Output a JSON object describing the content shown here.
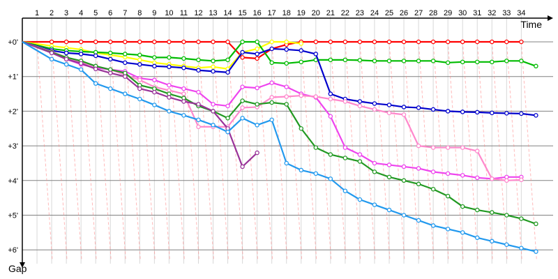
{
  "chart_data": {
    "type": "line",
    "title": "",
    "xlabel": "Time",
    "ylabel": "Gap",
    "x_ticks": [
      1,
      2,
      3,
      4,
      5,
      6,
      7,
      8,
      9,
      10,
      11,
      12,
      13,
      14,
      15,
      16,
      17,
      18,
      19,
      20,
      21,
      22,
      23,
      24,
      25,
      26,
      27,
      28,
      29,
      30,
      31,
      32,
      33,
      34
    ],
    "x_tick_labels": [
      "1",
      "2",
      "3",
      "4",
      "5",
      "6",
      "7",
      "8",
      "9",
      "10",
      "11",
      "12",
      "13",
      "14",
      "15",
      "16",
      "17",
      "18",
      "19",
      "20",
      "21",
      "22",
      "23",
      "24",
      "25",
      "26",
      "27",
      "28",
      "29",
      "30",
      "31",
      "32",
      "33",
      "34"
    ],
    "y_ticks": [
      0,
      1,
      2,
      3,
      4,
      5,
      6
    ],
    "y_tick_labels": [
      "+0'",
      "+1'",
      "+2'",
      "+3'",
      "+4'",
      "+5'",
      "+6'"
    ],
    "xlim": [
      0,
      37
    ],
    "ylim": [
      0,
      6.45
    ],
    "y_inverted": true,
    "grid": true,
    "legend": "none",
    "series": [
      {
        "color": "#ff0000",
        "x": [
          0,
          2,
          3,
          4,
          5,
          6,
          7,
          8,
          9,
          10,
          11,
          12,
          13,
          14,
          15,
          16,
          17,
          18,
          19,
          20,
          21,
          22,
          23,
          24,
          25,
          26,
          27,
          28,
          29,
          30,
          31,
          32,
          33,
          34
        ],
        "y": [
          0,
          0,
          0,
          0,
          0,
          0,
          0,
          0,
          0,
          0,
          0,
          0,
          0,
          0,
          0.45,
          0.48,
          0.2,
          0.08,
          0,
          0,
          0,
          0,
          0,
          0,
          0,
          0,
          0,
          0,
          0,
          0,
          0,
          0,
          0,
          0
        ]
      },
      {
        "color": "#ffff00",
        "x": [
          0,
          2,
          3,
          4,
          5,
          6,
          7,
          8,
          9,
          10,
          11,
          12,
          13,
          14,
          15,
          16,
          17,
          18,
          19
        ],
        "y": [
          0,
          0.12,
          0.17,
          0.22,
          0.32,
          0.38,
          0.44,
          0.52,
          0.6,
          0.65,
          0.7,
          0.75,
          0.72,
          0.78,
          0.3,
          0.2,
          0,
          0,
          0.05
        ]
      },
      {
        "color": "#00bb00",
        "x": [
          0,
          2,
          3,
          4,
          5,
          6,
          7,
          8,
          9,
          10,
          11,
          12,
          13,
          14,
          15,
          16,
          17,
          18,
          19,
          20,
          21,
          22,
          23,
          24,
          25,
          26,
          27,
          28,
          29,
          30,
          31,
          32,
          33,
          34,
          35
        ],
        "y": [
          0,
          0.2,
          0.25,
          0.28,
          0.3,
          0.32,
          0.35,
          0.38,
          0.45,
          0.45,
          0.48,
          0.52,
          0.55,
          0.52,
          0,
          0,
          0.6,
          0.62,
          0.58,
          0.52,
          0.52,
          0.52,
          0.53,
          0.55,
          0.55,
          0.55,
          0.55,
          0.55,
          0.6,
          0.58,
          0.58,
          0.58,
          0.55,
          0.55,
          0.7
        ]
      },
      {
        "color": "#0000cc",
        "x": [
          0,
          2,
          3,
          4,
          5,
          6,
          7,
          8,
          9,
          10,
          11,
          12,
          13,
          14,
          15,
          16,
          17,
          18,
          19,
          20,
          21,
          22,
          23,
          24,
          25,
          26,
          27,
          28,
          29,
          30,
          31,
          32,
          33,
          34,
          35
        ],
        "y": [
          0,
          0.25,
          0.32,
          0.35,
          0.4,
          0.5,
          0.6,
          0.65,
          0.7,
          0.72,
          0.75,
          0.82,
          0.85,
          0.88,
          0.3,
          0.35,
          0.2,
          0.22,
          0.25,
          0.35,
          1.5,
          1.65,
          1.72,
          1.78,
          1.82,
          1.88,
          1.9,
          1.95,
          2,
          2.02,
          2.03,
          2.05,
          2.06,
          2.07,
          2.12
        ]
      },
      {
        "color": "#ee44ee",
        "x": [
          0,
          2,
          3,
          4,
          5,
          6,
          7,
          8,
          9,
          10,
          11,
          12,
          13,
          14,
          15,
          16,
          17,
          18,
          19,
          20,
          21,
          22,
          23,
          24,
          25,
          26,
          27,
          28,
          29,
          30,
          31,
          32,
          33,
          34
        ],
        "y": [
          0,
          0.3,
          0.5,
          0.65,
          0.75,
          0.8,
          0.85,
          1.05,
          1.1,
          1.25,
          1.35,
          1.45,
          1.8,
          1.85,
          1.3,
          1.33,
          1.18,
          1.3,
          1.5,
          1.6,
          2.15,
          3.05,
          3.25,
          3.5,
          3.55,
          3.6,
          3.65,
          3.75,
          3.8,
          3.85,
          3.92,
          3.95,
          3.9,
          3.9
        ]
      },
      {
        "color": "#ff88cc",
        "x": [
          0,
          2,
          3,
          4,
          5,
          6,
          7,
          8,
          9,
          10,
          11,
          12,
          13,
          14,
          15,
          16,
          17,
          18,
          19,
          20,
          21,
          22,
          23,
          24,
          25,
          26,
          27,
          28,
          29,
          30,
          31,
          32,
          33,
          34
        ],
        "y": [
          0,
          0.28,
          0.45,
          0.6,
          0.7,
          0.8,
          0.95,
          1.1,
          1.3,
          1.4,
          1.5,
          2.45,
          2.45,
          2.45,
          1.9,
          1.88,
          1.6,
          1.58,
          1.55,
          1.58,
          1.65,
          1.72,
          1.85,
          1.95,
          2.05,
          2.1,
          3.0,
          3.05,
          3.05,
          3.05,
          3.15,
          3.95,
          4.0,
          3.98
        ]
      },
      {
        "color": "#229922",
        "x": [
          0,
          2,
          3,
          4,
          5,
          6,
          7,
          8,
          9,
          10,
          11,
          12,
          13,
          14,
          15,
          16,
          17,
          18,
          19,
          20,
          21,
          22,
          23,
          24,
          25,
          26,
          27,
          28,
          29,
          30,
          31,
          32,
          33,
          34,
          35
        ],
        "y": [
          0,
          0.3,
          0.45,
          0.55,
          0.7,
          0.8,
          0.9,
          1.25,
          1.35,
          1.5,
          1.62,
          1.85,
          2.0,
          2.2,
          1.7,
          1.8,
          1.75,
          1.8,
          2.5,
          3.05,
          3.25,
          3.35,
          3.45,
          3.75,
          3.9,
          4.0,
          4.1,
          4.25,
          4.45,
          4.75,
          4.85,
          4.92,
          5.0,
          5.1,
          5.25
        ]
      },
      {
        "color": "#993399",
        "x": [
          0,
          2,
          3,
          4,
          5,
          6,
          7,
          8,
          9,
          10,
          11,
          12,
          13,
          14,
          15,
          16
        ],
        "y": [
          0,
          0.32,
          0.5,
          0.62,
          0.78,
          0.9,
          1.0,
          1.35,
          1.45,
          1.6,
          1.72,
          1.8,
          2.0,
          2.5,
          3.6,
          3.2
        ]
      },
      {
        "color": "#2299ee",
        "x": [
          0,
          2,
          3,
          4,
          5,
          6,
          7,
          8,
          9,
          10,
          11,
          12,
          13,
          14,
          15,
          16,
          17,
          18,
          19,
          20,
          21,
          22,
          23,
          24,
          25,
          26,
          27,
          28,
          29,
          30,
          31,
          32,
          33,
          34,
          35
        ],
        "y": [
          0,
          0.5,
          0.65,
          0.8,
          1.2,
          1.35,
          1.5,
          1.65,
          1.82,
          2.0,
          2.12,
          2.25,
          2.4,
          2.6,
          2.2,
          2.4,
          2.25,
          3.5,
          3.7,
          3.8,
          3.95,
          4.3,
          4.55,
          4.7,
          4.85,
          5.0,
          5.15,
          5.3,
          5.4,
          5.5,
          5.65,
          5.75,
          5.85,
          5.95,
          6.05
        ]
      }
    ]
  }
}
